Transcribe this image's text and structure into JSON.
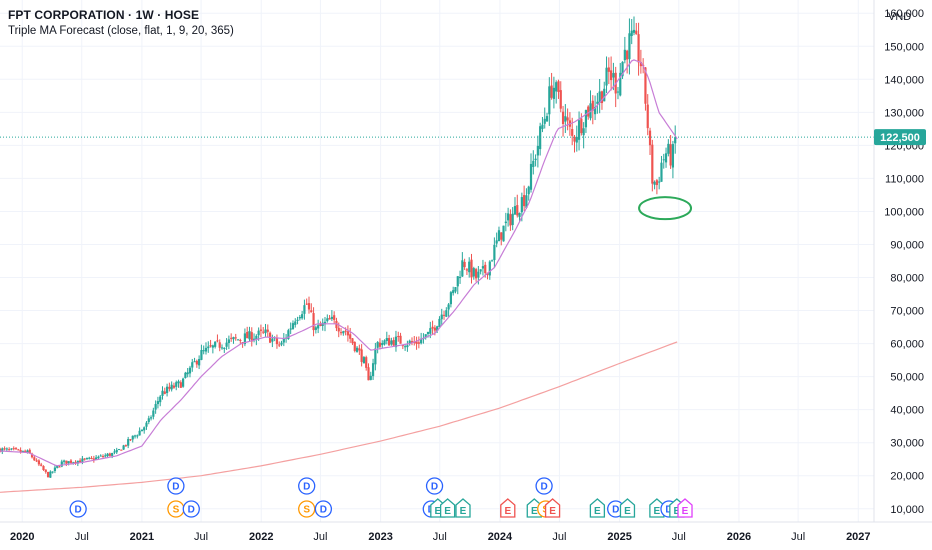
{
  "header": {
    "title": "FPT CORPORATION · 1W · HOSE",
    "indicator": "Triple MA Forecast (close, flat, 1, 9, 20, 365)"
  },
  "currency": "VND",
  "colors": {
    "up": "#26a69a",
    "down": "#ef5350",
    "ma_short": "#c77dd6",
    "ma_long": "#f4a0a0",
    "price_label_bg": "#26a69a",
    "annotation": "#2ca95a",
    "axis_border": "#e0e3eb",
    "dividend": "#2962ff",
    "split": "#ff9800",
    "earnings_green": "#26a69a",
    "earnings_red": "#ef5350",
    "earnings_purple": "#e040fb"
  },
  "chart_data": {
    "type": "candlestick",
    "title": "FPT CORPORATION · 1W · HOSE",
    "ylim": [
      6000,
      164000
    ],
    "y_ticks": [
      10000,
      20000,
      30000,
      40000,
      50000,
      60000,
      70000,
      80000,
      90000,
      100000,
      110000,
      120000,
      130000,
      140000,
      150000,
      160000
    ],
    "y_tick_labels": [
      "10,000",
      "20,000",
      "30,000",
      "40,000",
      "50,000",
      "60,000",
      "70,000",
      "80,000",
      "90,000",
      "100,000",
      "110,000",
      "120,000",
      "130,000",
      "140,000",
      "150,000",
      "160,000"
    ],
    "xlim": [
      "2019-10-25",
      "2027-02-18"
    ],
    "x_ticks": [
      {
        "date": "2020-01-01",
        "label": "2020",
        "year": true
      },
      {
        "date": "2020-07-01",
        "label": "Jul",
        "year": false
      },
      {
        "date": "2021-01-01",
        "label": "2021",
        "year": true
      },
      {
        "date": "2021-07-01",
        "label": "Jul",
        "year": false
      },
      {
        "date": "2022-01-01",
        "label": "2022",
        "year": true
      },
      {
        "date": "2022-07-01",
        "label": "Jul",
        "year": false
      },
      {
        "date": "2023-01-01",
        "label": "2023",
        "year": true
      },
      {
        "date": "2023-07-01",
        "label": "Jul",
        "year": false
      },
      {
        "date": "2024-01-01",
        "label": "2024",
        "year": true
      },
      {
        "date": "2024-07-01",
        "label": "Jul",
        "year": false
      },
      {
        "date": "2025-01-01",
        "label": "2025",
        "year": true
      },
      {
        "date": "2025-07-01",
        "label": "Jul",
        "year": false
      },
      {
        "date": "2026-01-01",
        "label": "2026",
        "year": true
      },
      {
        "date": "2026-07-01",
        "label": "Jul",
        "year": false
      },
      {
        "date": "2027-01-01",
        "label": "2027",
        "year": true
      }
    ],
    "last_price": 122500,
    "last_price_label": "122,500",
    "price_anchors": [
      [
        "2019-10-25",
        28000
      ],
      [
        "2020-01-20",
        27000
      ],
      [
        "2020-03-20",
        20000
      ],
      [
        "2020-05-01",
        24000
      ],
      [
        "2020-08-01",
        25000
      ],
      [
        "2020-10-15",
        27000
      ],
      [
        "2020-12-20",
        33000
      ],
      [
        "2021-01-20",
        36000
      ],
      [
        "2021-03-01",
        45000
      ],
      [
        "2021-05-01",
        48000
      ],
      [
        "2021-07-01",
        57000
      ],
      [
        "2021-09-01",
        60000
      ],
      [
        "2021-11-20",
        62000
      ],
      [
        "2022-01-15",
        63000
      ],
      [
        "2022-03-01",
        59000
      ],
      [
        "2022-04-15",
        68000
      ],
      [
        "2022-05-20",
        72000
      ],
      [
        "2022-06-15",
        64000
      ],
      [
        "2022-08-01",
        67000
      ],
      [
        "2022-09-15",
        64000
      ],
      [
        "2022-11-10",
        55000
      ],
      [
        "2022-11-25",
        48000
      ],
      [
        "2022-12-20",
        60000
      ],
      [
        "2023-02-15",
        61000
      ],
      [
        "2023-04-15",
        60000
      ],
      [
        "2023-06-01",
        63000
      ],
      [
        "2023-08-10",
        75000
      ],
      [
        "2023-09-10",
        85000
      ],
      [
        "2023-10-20",
        80000
      ],
      [
        "2023-11-20",
        82000
      ],
      [
        "2024-01-01",
        93000
      ],
      [
        "2024-02-20",
        101000
      ],
      [
        "2024-03-20",
        105000
      ],
      [
        "2024-04-20",
        118000
      ],
      [
        "2024-05-20",
        130000
      ],
      [
        "2024-06-10",
        139000
      ],
      [
        "2024-07-10",
        130000
      ],
      [
        "2024-08-10",
        122000
      ],
      [
        "2024-09-20",
        130000
      ],
      [
        "2024-11-01",
        135000
      ],
      [
        "2024-12-01",
        142000
      ],
      [
        "2024-12-25",
        138000
      ],
      [
        "2025-01-15",
        148000
      ],
      [
        "2025-02-05",
        152000
      ],
      [
        "2025-02-20",
        150000
      ],
      [
        "2025-03-10",
        144000
      ],
      [
        "2025-03-25",
        130000
      ],
      [
        "2025-04-10",
        110000
      ],
      [
        "2025-04-25",
        108000
      ],
      [
        "2025-05-10",
        115000
      ],
      [
        "2025-05-25",
        118000
      ],
      [
        "2025-06-10",
        116000
      ],
      [
        "2025-06-26",
        122500
      ]
    ],
    "ma_short_anchors": [
      [
        "2019-10-25",
        27500
      ],
      [
        "2020-01-20",
        27000
      ],
      [
        "2020-04-15",
        23000
      ],
      [
        "2020-07-01",
        24000
      ],
      [
        "2020-10-15",
        26000
      ],
      [
        "2021-01-01",
        29000
      ],
      [
        "2021-03-01",
        37000
      ],
      [
        "2021-05-01",
        43000
      ],
      [
        "2021-07-01",
        50000
      ],
      [
        "2021-09-01",
        56000
      ],
      [
        "2021-11-01",
        60000
      ],
      [
        "2022-01-15",
        62000
      ],
      [
        "2022-03-15",
        61500
      ],
      [
        "2022-05-10",
        64000
      ],
      [
        "2022-06-20",
        66000
      ],
      [
        "2022-08-20",
        66000
      ],
      [
        "2022-10-10",
        63000
      ],
      [
        "2022-12-01",
        58000
      ],
      [
        "2023-02-01",
        59000
      ],
      [
        "2023-04-01",
        60000
      ],
      [
        "2023-06-15",
        63000
      ],
      [
        "2023-08-15",
        70000
      ],
      [
        "2023-10-15",
        78000
      ],
      [
        "2023-12-15",
        83000
      ],
      [
        "2024-02-15",
        94000
      ],
      [
        "2024-04-01",
        103000
      ],
      [
        "2024-05-15",
        115000
      ],
      [
        "2024-06-25",
        125000
      ],
      [
        "2024-08-15",
        127000
      ],
      [
        "2024-10-15",
        131000
      ],
      [
        "2024-12-15",
        138000
      ],
      [
        "2025-02-10",
        146000
      ],
      [
        "2025-03-10",
        145000
      ],
      [
        "2025-04-01",
        140000
      ],
      [
        "2025-05-01",
        130000
      ],
      [
        "2025-06-26",
        122000
      ]
    ],
    "ma_long_anchors": [
      [
        "2019-10-25",
        15000
      ],
      [
        "2020-07-01",
        16500
      ],
      [
        "2021-01-01",
        18000
      ],
      [
        "2021-07-01",
        20000
      ],
      [
        "2022-01-01",
        23000
      ],
      [
        "2022-07-01",
        26500
      ],
      [
        "2023-01-01",
        30500
      ],
      [
        "2023-07-01",
        35000
      ],
      [
        "2024-01-01",
        40500
      ],
      [
        "2024-07-01",
        47000
      ],
      [
        "2025-01-01",
        54000
      ],
      [
        "2025-06-26",
        60500
      ]
    ],
    "annotation": {
      "type": "ellipse",
      "date": "2025-05-20",
      "price": 101000
    }
  },
  "events": [
    {
      "date": "2020-06-20",
      "label": "D",
      "kind": "dividend",
      "row": 1
    },
    {
      "date": "2021-04-15",
      "label": "D",
      "kind": "dividend",
      "row": 0
    },
    {
      "date": "2021-04-15",
      "label": "S",
      "kind": "split",
      "row": 1
    },
    {
      "date": "2021-06-01",
      "label": "D",
      "kind": "dividend",
      "row": 1
    },
    {
      "date": "2022-05-20",
      "label": "D",
      "kind": "dividend",
      "row": 0
    },
    {
      "date": "2022-05-20",
      "label": "S",
      "kind": "split",
      "row": 1
    },
    {
      "date": "2022-07-10",
      "label": "D",
      "kind": "dividend",
      "row": 1
    },
    {
      "date": "2023-06-15",
      "label": "D",
      "kind": "dividend",
      "row": 0
    },
    {
      "date": "2023-06-05",
      "label": "D",
      "kind": "dividend",
      "row": 1
    },
    {
      "date": "2023-06-25",
      "label": "E",
      "kind": "earnings",
      "row": 1
    },
    {
      "date": "2023-07-25",
      "label": "E",
      "kind": "earnings",
      "row": 1
    },
    {
      "date": "2023-09-10",
      "label": "E",
      "kind": "earnings",
      "row": 1
    },
    {
      "date": "2024-01-25",
      "label": "E",
      "kind": "earnings_red",
      "row": 1
    },
    {
      "date": "2024-05-15",
      "label": "D",
      "kind": "dividend",
      "row": 0
    },
    {
      "date": "2024-04-15",
      "label": "E",
      "kind": "earnings",
      "row": 1
    },
    {
      "date": "2024-05-20",
      "label": "S",
      "kind": "split",
      "row": 1
    },
    {
      "date": "2024-06-10",
      "label": "E",
      "kind": "earnings_red",
      "row": 1
    },
    {
      "date": "2024-10-25",
      "label": "E",
      "kind": "earnings",
      "row": 1
    },
    {
      "date": "2024-12-20",
      "label": "D",
      "kind": "dividend",
      "row": 1
    },
    {
      "date": "2025-01-25",
      "label": "E",
      "kind": "earnings",
      "row": 1
    },
    {
      "date": "2025-04-25",
      "label": "E",
      "kind": "earnings",
      "row": 1
    },
    {
      "date": "2025-06-01",
      "label": "D",
      "kind": "dividend",
      "row": 1
    },
    {
      "date": "2025-06-25",
      "label": "E",
      "kind": "earnings",
      "row": 1
    },
    {
      "date": "2025-07-20",
      "label": "E",
      "kind": "earnings_purple",
      "row": 1
    }
  ]
}
